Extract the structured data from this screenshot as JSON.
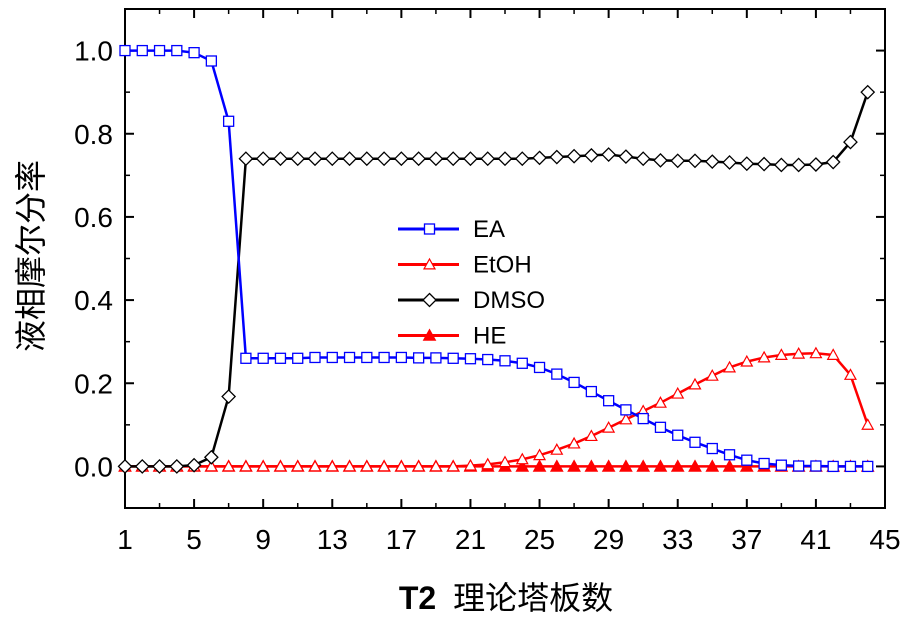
{
  "chart_data": {
    "type": "line",
    "xlabel_bold": "T2",
    "xlabel_rest": "理论塔板数",
    "ylabel": "液相摩尔分率",
    "xlim": [
      1,
      45
    ],
    "ylim": [
      -0.1,
      1.1
    ],
    "x_ticks": [
      1,
      5,
      9,
      13,
      17,
      21,
      25,
      29,
      33,
      37,
      41,
      45
    ],
    "y_ticks": [
      0.0,
      0.2,
      0.4,
      0.6,
      0.8,
      1.0
    ],
    "y_tick_labels": [
      "0.0",
      "0.2",
      "0.4",
      "0.6",
      "0.8",
      "1.0"
    ],
    "legend_position": "center",
    "grid": false,
    "x": [
      1,
      2,
      3,
      4,
      5,
      6,
      7,
      8,
      9,
      10,
      11,
      12,
      13,
      14,
      15,
      16,
      17,
      18,
      19,
      20,
      21,
      22,
      23,
      24,
      25,
      26,
      27,
      28,
      29,
      30,
      31,
      32,
      33,
      34,
      35,
      36,
      37,
      38,
      39,
      40,
      41,
      42,
      43,
      44
    ],
    "series": [
      {
        "name": "EA",
        "color": "#0000ff",
        "marker": "square-open",
        "values": [
          1.0,
          1.0,
          1.0,
          1.0,
          0.995,
          0.975,
          0.83,
          0.26,
          0.26,
          0.26,
          0.26,
          0.262,
          0.262,
          0.262,
          0.262,
          0.262,
          0.262,
          0.261,
          0.261,
          0.26,
          0.259,
          0.257,
          0.254,
          0.248,
          0.238,
          0.222,
          0.202,
          0.18,
          0.158,
          0.136,
          0.115,
          0.094,
          0.075,
          0.058,
          0.043,
          0.028,
          0.015,
          0.007,
          0.003,
          0.001,
          0.001,
          0.0,
          0.0,
          0.0
        ]
      },
      {
        "name": "EtOH",
        "color": "#ff0000",
        "marker": "triangle-open",
        "values": [
          0.0,
          0.0,
          0.0,
          0.0,
          0.0,
          0.0,
          0.0,
          0.0,
          0.0,
          0.0,
          0.0,
          0.0,
          0.0,
          0.0,
          0.0,
          0.0,
          0.0,
          0.0,
          0.0,
          0.0,
          0.002,
          0.005,
          0.01,
          0.017,
          0.027,
          0.04,
          0.055,
          0.073,
          0.093,
          0.113,
          0.133,
          0.153,
          0.175,
          0.197,
          0.218,
          0.238,
          0.252,
          0.262,
          0.268,
          0.271,
          0.272,
          0.268,
          0.22,
          0.1
        ]
      },
      {
        "name": "DMSO",
        "color": "#000000",
        "marker": "diamond-open",
        "values": [
          0.0,
          0.0,
          0.0,
          0.0,
          0.003,
          0.022,
          0.168,
          0.74,
          0.74,
          0.74,
          0.74,
          0.74,
          0.74,
          0.74,
          0.74,
          0.74,
          0.74,
          0.74,
          0.74,
          0.74,
          0.74,
          0.74,
          0.74,
          0.74,
          0.742,
          0.744,
          0.746,
          0.748,
          0.75,
          0.745,
          0.74,
          0.736,
          0.735,
          0.735,
          0.733,
          0.731,
          0.728,
          0.727,
          0.725,
          0.725,
          0.726,
          0.732,
          0.78,
          0.9
        ]
      },
      {
        "name": "HE",
        "color": "#ff0000",
        "marker": "triangle-filled",
        "values": [
          0.0,
          0.0,
          0.0,
          0.0,
          0.0,
          0.0,
          0.0,
          0.0,
          0.0,
          0.0,
          0.0,
          0.0,
          0.0,
          0.0,
          0.0,
          0.0,
          0.0,
          0.0,
          0.0,
          0.0,
          0.0,
          0.0,
          0.0,
          0.0,
          0.0,
          0.0,
          0.0,
          0.0,
          0.0,
          0.0,
          0.0,
          0.0,
          0.0,
          0.0,
          0.0,
          0.0,
          0.0,
          0.0,
          0.0,
          0.0,
          0.0,
          0.0,
          0.0,
          0.0
        ]
      }
    ]
  }
}
